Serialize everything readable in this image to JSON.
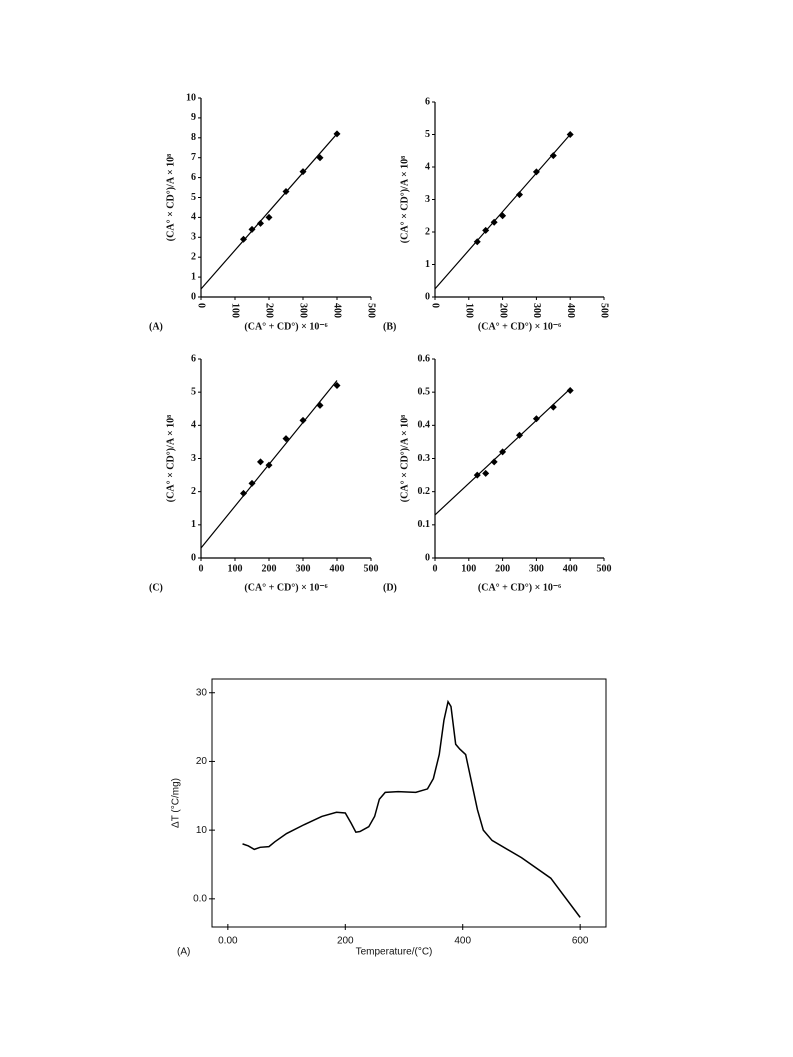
{
  "chart_data": [
    {
      "type": "scatter",
      "panel_label": "(A)",
      "x_label": "(CA° + CD°) × 10⁻⁶",
      "y_label": "(CA° × CD°)/A × 10⁸",
      "x": [
        125,
        150,
        175,
        200,
        250,
        300,
        350,
        400
      ],
      "values": [
        2.9,
        3.4,
        3.7,
        4.0,
        5.3,
        6.3,
        7.0,
        8.2
      ],
      "fit": {
        "x": [
          0,
          400
        ],
        "y": [
          0.4,
          8.2
        ]
      },
      "xlim": [
        0,
        500
      ],
      "xticks": [
        0,
        100,
        200,
        300,
        400,
        500
      ],
      "ylim": [
        0,
        10
      ],
      "yticks": [
        0,
        1,
        2,
        3,
        4,
        5,
        6,
        7,
        8,
        9,
        10
      ],
      "xtick_rotation": 90,
      "color": "#000000"
    },
    {
      "type": "scatter",
      "panel_label": "(B)",
      "x_label": "(CA° + CD°) × 10⁻⁶",
      "y_label": "(CA° × CD°)/A × 10⁸",
      "x": [
        125,
        150,
        175,
        200,
        250,
        300,
        350,
        400
      ],
      "values": [
        1.7,
        2.05,
        2.3,
        2.5,
        3.15,
        3.85,
        4.35,
        5.0
      ],
      "fit": {
        "x": [
          0,
          400
        ],
        "y": [
          0.25,
          5.0
        ]
      },
      "xlim": [
        0,
        500
      ],
      "xticks": [
        0,
        100,
        200,
        300,
        400,
        500
      ],
      "ylim": [
        0,
        6
      ],
      "yticks": [
        0,
        1,
        2,
        3,
        4,
        5,
        6
      ],
      "xtick_rotation": 90,
      "color": "#000000"
    },
    {
      "type": "scatter",
      "panel_label": "(C)",
      "x_label": "(CA° + CD°) × 10⁻⁶",
      "y_label": "(CA° × CD°)/A × 10⁸",
      "x": [
        125,
        150,
        175,
        200,
        250,
        300,
        350,
        400
      ],
      "values": [
        1.95,
        2.25,
        2.9,
        2.8,
        3.6,
        4.15,
        4.6,
        5.2
      ],
      "fit": {
        "x": [
          0,
          400
        ],
        "y": [
          0.3,
          5.35
        ]
      },
      "xlim": [
        0,
        500
      ],
      "xticks": [
        0,
        100,
        200,
        300,
        400,
        500
      ],
      "ylim": [
        0,
        6
      ],
      "yticks": [
        0,
        1,
        2,
        3,
        4,
        5,
        6
      ],
      "xtick_rotation": 0,
      "color": "#000000"
    },
    {
      "type": "scatter",
      "panel_label": "(D)",
      "x_label": "(CA° + CD°) × 10⁻⁶",
      "y_label": "(CA° × CD°)/A × 10⁸",
      "x": [
        125,
        150,
        175,
        200,
        250,
        300,
        350,
        400
      ],
      "values": [
        0.25,
        0.255,
        0.29,
        0.32,
        0.37,
        0.42,
        0.455,
        0.505
      ],
      "fit": {
        "x": [
          0,
          400
        ],
        "y": [
          0.13,
          0.51
        ]
      },
      "xlim": [
        0,
        500
      ],
      "xticks": [
        0,
        100,
        200,
        300,
        400,
        500
      ],
      "ylim": [
        0,
        0.6
      ],
      "yticks": [
        0,
        0.1,
        0.2,
        0.3,
        0.4,
        0.5,
        0.6
      ],
      "xtick_rotation": 0,
      "color": "#000000"
    },
    {
      "type": "line",
      "panel_label": "(A)",
      "x_label": "Temperature/(°C)",
      "y_label": "ΔT (°C/mg)",
      "x": [
        25,
        35,
        45,
        55,
        70,
        80,
        100,
        130,
        160,
        185,
        200,
        210,
        218,
        225,
        240,
        250,
        258,
        268,
        290,
        320,
        340,
        350,
        360,
        368,
        375,
        380,
        388,
        395,
        405,
        415,
        425,
        435,
        450,
        500,
        550,
        600
      ],
      "values": [
        8,
        7.7,
        7.2,
        7.5,
        7.6,
        8.3,
        9.5,
        10.8,
        12,
        12.6,
        12.5,
        11,
        9.7,
        9.8,
        10.5,
        12,
        14.5,
        15.5,
        15.6,
        15.5,
        16,
        17.5,
        21,
        26,
        28.7,
        28,
        22.5,
        21.8,
        21,
        17,
        13,
        10,
        8.5,
        6,
        3,
        -2.7
      ],
      "xlim": [
        -27,
        644
      ],
      "xticks": [
        {
          "value": 0,
          "label": "0.00"
        },
        200,
        400,
        600
      ],
      "ylim": [
        -4.1,
        32
      ],
      "yticks": [
        {
          "value": 0,
          "label": "0.0"
        },
        10,
        20,
        30
      ],
      "color": "#000000"
    }
  ]
}
